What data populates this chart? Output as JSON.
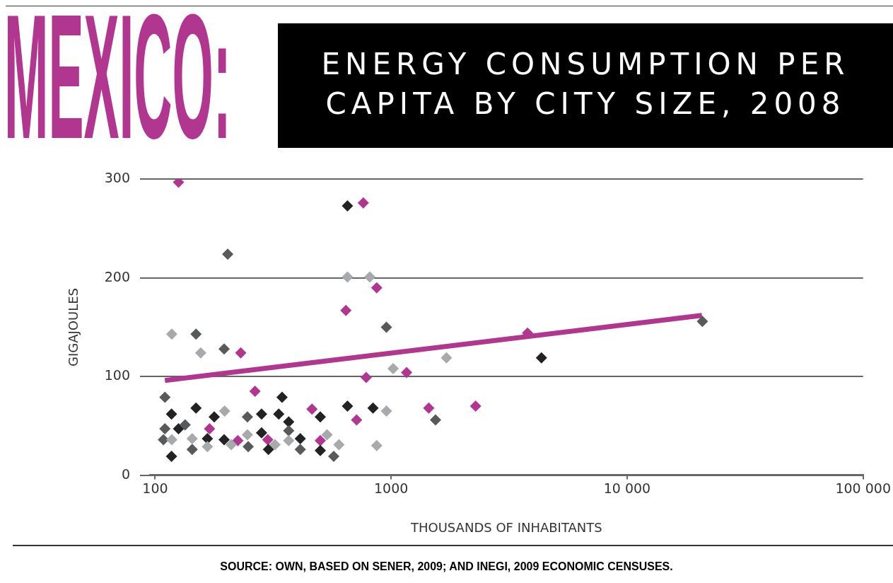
{
  "chart_data": {
    "type": "scatter",
    "title": "MEXICO:",
    "subtitle": "ENERGY CONSUMPTION PER CAPITA BY CITY SIZE, 2008",
    "xlabel": "THOUSANDS OF INHABITANTS",
    "ylabel": "GIGAJOULES",
    "annotations": [
      "SOURCE: OWN, BASED ON SENER, 2009; AND INEGI, 2009 ECONOMIC CENSUSES."
    ],
    "log": "x",
    "grid": "y",
    "marker": "diamond",
    "xlim": [
      95,
      100000
    ],
    "xticks": [
      100,
      1000,
      {
        "value": 10000,
        "label": "10 000"
      },
      {
        "value": 100000,
        "label": "100 000"
      }
    ],
    "ylim": [
      0,
      300
    ],
    "yticks": [
      0,
      100,
      200,
      300
    ],
    "series": [
      {
        "color": "#a7a9ac",
        "x": [
          653,
          812,
          117.6,
          156,
          1020,
          1716,
          197,
          955,
          117.6,
          143.5,
          166.5,
          210,
          246,
          322,
          368,
          535,
          601,
          869
        ],
        "values": [
          201,
          201,
          143,
          124,
          108,
          119,
          65,
          65,
          36,
          37,
          29,
          31,
          41,
          31,
          35,
          41,
          31,
          30
        ]
      },
      {
        "color": "#58595b",
        "x": [
          203,
          149,
          196,
          955,
          110,
          110,
          134,
          108.4,
          143.5,
          246,
          248,
          368,
          412,
          571,
          1542,
          20850
        ],
        "values": [
          224,
          143,
          128,
          150,
          79,
          47,
          51,
          36,
          26,
          59,
          29,
          45,
          26,
          19,
          56,
          156
        ]
      },
      {
        "color": "#222222",
        "x": [
          653,
          117.3,
          149,
          178,
          125.6,
          117.3,
          166.5,
          196,
          282.5,
          345,
          334,
          368,
          282.5,
          302,
          412,
          501,
          501,
          653,
          838,
          4335
        ],
        "values": [
          273,
          62,
          68,
          59,
          47,
          19,
          37,
          36,
          62,
          79,
          62,
          54,
          43,
          26,
          37,
          59,
          25,
          70,
          68,
          119
        ]
      },
      {
        "color": "#b0368f",
        "x": [
          125.6,
          762,
          869,
          643,
          230.5,
          784,
          1163,
          265,
          462,
          714,
          170,
          224,
          300,
          501,
          1444,
          2280,
          3785
        ],
        "values": [
          297,
          276,
          190,
          167,
          124,
          99,
          104,
          85,
          67,
          56,
          47,
          35,
          36,
          35,
          68,
          70,
          144
        ]
      },
      {
        "type": "line",
        "color": "#b0368f",
        "marker": "none",
        "x": [
          110,
          20750
        ],
        "values": [
          96,
          162
        ]
      }
    ]
  }
}
